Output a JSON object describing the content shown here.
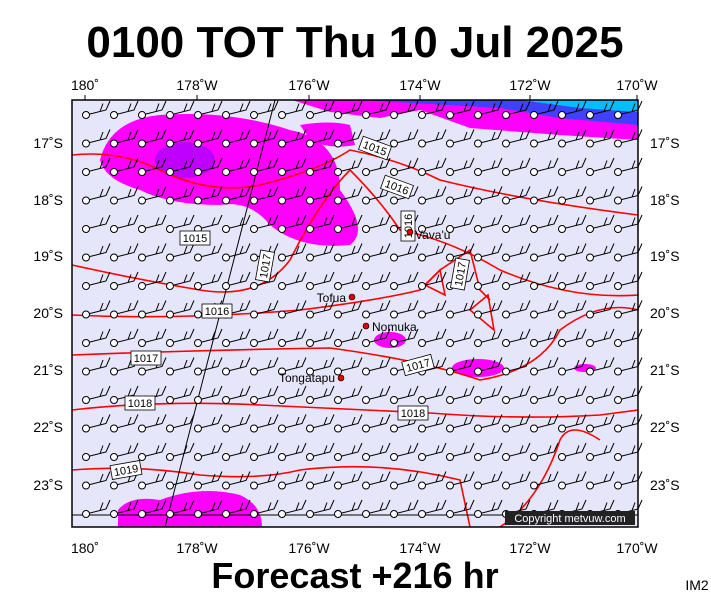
{
  "header": {
    "title": "0100 TOT Thu 10 Jul 2025"
  },
  "map": {
    "longitude_labels": [
      "180˚",
      "178˚W",
      "176˚W",
      "174˚W",
      "172˚W",
      "170˚W"
    ],
    "latitude_labels": [
      "17˚S",
      "18˚S",
      "19˚S",
      "20˚S",
      "21˚S",
      "22˚S",
      "23˚S"
    ],
    "places": [
      "Vava'u",
      "Tofua",
      "Nomuka",
      "Tongatapu"
    ],
    "isobar_labels": [
      "1015",
      "1016",
      "1015",
      "1016",
      "1017",
      "1017",
      "1016",
      "1017",
      "1017",
      "1018",
      "1018",
      "1019"
    ],
    "copyright": "Copyright metvuw.com"
  },
  "footer": {
    "forecast": "Forecast +216 hr",
    "image_id": "IM2"
  }
}
